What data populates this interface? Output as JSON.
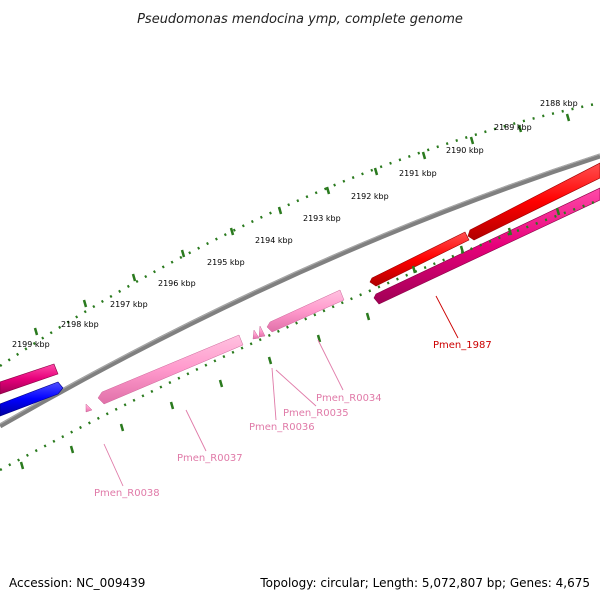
{
  "title": "Pseudomonas mendocina ymp, complete genome",
  "footer": {
    "accession": "Accession: NC_009439",
    "stats": "Topology: circular; Length: 5,072,807 bp; Genes: 4,675"
  },
  "colors": {
    "backbone": "#808080",
    "ticks": "#2a7a1e",
    "gene_red": "#ff0000",
    "gene_magenta": "#e6007a",
    "gene_blue": "#0000ff",
    "rna_pink": "#ff8fc8",
    "label_red": "#cc0000",
    "label_pink": "#e07aa8"
  },
  "tick_labels": [
    "2188 kbp",
    "2189 kbp",
    "2190 kbp",
    "2191 kbp",
    "2192 kbp",
    "2193 kbp",
    "2194 kbp",
    "2195 kbp",
    "2196 kbp",
    "2197 kbp",
    "2198 kbp",
    "2199 kbp"
  ],
  "gene_labels": {
    "pmen_1987": "Pmen_1987",
    "pmen_r0034": "Pmen_R0034",
    "pmen_r0035": "Pmen_R0035",
    "pmen_r0036": "Pmen_R0036",
    "pmen_r0037": "Pmen_R0037",
    "pmen_r0038": "Pmen_R0038"
  }
}
